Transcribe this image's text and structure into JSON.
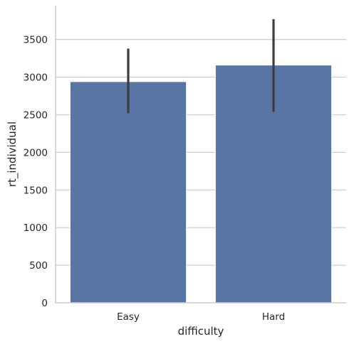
{
  "chart_data": {
    "type": "bar",
    "categories": [
      "Easy",
      "Hard"
    ],
    "values": [
      2940,
      3160
    ],
    "error_low": [
      2520,
      2540
    ],
    "error_high": [
      3380,
      3770
    ],
    "xlabel": "difficulty",
    "ylabel": "rt_individual",
    "ylim": [
      0,
      3950
    ],
    "yticks": [
      0,
      500,
      1000,
      1500,
      2000,
      2500,
      3000,
      3500
    ],
    "grid": "horizontal",
    "bar_color": "#5975a4",
    "error_color": "#3c3c3c"
  }
}
